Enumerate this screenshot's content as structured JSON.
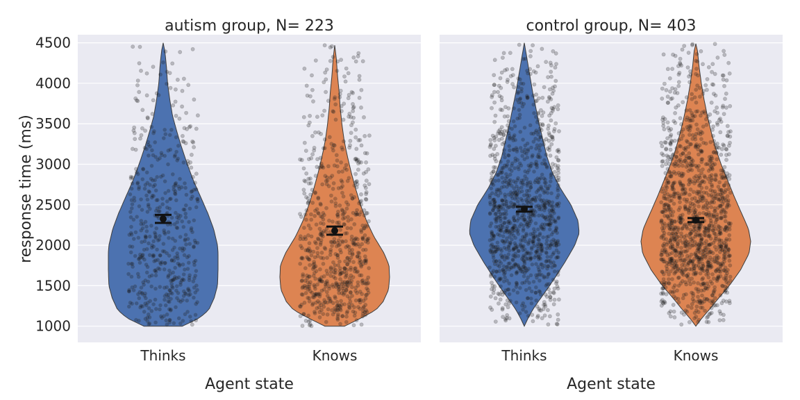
{
  "chart_data": [
    {
      "type": "violin",
      "title": "autism group, N= 223",
      "xlabel": "Agent state",
      "ylabel": "response time (ms)",
      "ylim": [
        800,
        4600
      ],
      "yticks": [
        1000,
        1500,
        2000,
        2500,
        3000,
        3500,
        4000,
        4500
      ],
      "categories": [
        "Thinks",
        "Knows"
      ],
      "series": [
        {
          "category": "Thinks",
          "color": "#4c72b0",
          "range": [
            1000,
            4500
          ],
          "mean": 2325,
          "ci": [
            2275,
            2375
          ],
          "n_points": 520,
          "density": [
            [
              1000,
              0.35
            ],
            [
              1100,
              0.66
            ],
            [
              1200,
              0.83
            ],
            [
              1350,
              0.93
            ],
            [
              1500,
              0.99
            ],
            [
              1700,
              1.0
            ],
            [
              1900,
              1.0
            ],
            [
              2000,
              0.99
            ],
            [
              2200,
              0.92
            ],
            [
              2400,
              0.81
            ],
            [
              2600,
              0.68
            ],
            [
              2800,
              0.55
            ],
            [
              3000,
              0.44
            ],
            [
              3200,
              0.34
            ],
            [
              3400,
              0.25
            ],
            [
              3600,
              0.17
            ],
            [
              3800,
              0.12
            ],
            [
              4000,
              0.08
            ],
            [
              4200,
              0.06
            ],
            [
              4400,
              0.03
            ],
            [
              4500,
              0.0
            ]
          ]
        },
        {
          "category": "Knows",
          "color": "#dd8452",
          "range": [
            1000,
            4470
          ],
          "mean": 2180,
          "ci": [
            2130,
            2230
          ],
          "n_points": 720,
          "density": [
            [
              1000,
              0.18
            ],
            [
              1100,
              0.48
            ],
            [
              1200,
              0.75
            ],
            [
              1300,
              0.88
            ],
            [
              1450,
              0.98
            ],
            [
              1600,
              1.0
            ],
            [
              1750,
              0.99
            ],
            [
              1900,
              0.9
            ],
            [
              2100,
              0.72
            ],
            [
              2300,
              0.58
            ],
            [
              2500,
              0.47
            ],
            [
              2700,
              0.38
            ],
            [
              2900,
              0.3
            ],
            [
              3100,
              0.23
            ],
            [
              3300,
              0.17
            ],
            [
              3500,
              0.13
            ],
            [
              3700,
              0.1
            ],
            [
              3900,
              0.08
            ],
            [
              4100,
              0.05
            ],
            [
              4300,
              0.03
            ],
            [
              4470,
              0.0
            ]
          ]
        }
      ]
    },
    {
      "type": "violin",
      "title": "control group, N= 403",
      "xlabel": "Agent state",
      "ylabel": "",
      "ylim": [
        800,
        4600
      ],
      "yticks": [
        1000,
        1500,
        2000,
        2500,
        3000,
        3500,
        4000,
        4500
      ],
      "categories": [
        "Thinks",
        "Knows"
      ],
      "series": [
        {
          "category": "Thinks",
          "color": "#4c72b0",
          "range": [
            1000,
            4500
          ],
          "mean": 2445,
          "ci": [
            2415,
            2475
          ],
          "n_points": 1100,
          "density": [
            [
              1000,
              0.0
            ],
            [
              1100,
              0.07
            ],
            [
              1200,
              0.15
            ],
            [
              1300,
              0.25
            ],
            [
              1450,
              0.41
            ],
            [
              1600,
              0.56
            ],
            [
              1800,
              0.75
            ],
            [
              2000,
              0.92
            ],
            [
              2150,
              1.0
            ],
            [
              2300,
              0.98
            ],
            [
              2500,
              0.85
            ],
            [
              2700,
              0.66
            ],
            [
              2900,
              0.51
            ],
            [
              3100,
              0.41
            ],
            [
              3300,
              0.34
            ],
            [
              3500,
              0.27
            ],
            [
              3700,
              0.21
            ],
            [
              3900,
              0.15
            ],
            [
              4100,
              0.1
            ],
            [
              4300,
              0.05
            ],
            [
              4500,
              0.0
            ]
          ]
        },
        {
          "category": "Knows",
          "color": "#dd8452",
          "range": [
            1000,
            4490
          ],
          "mean": 2310,
          "ci": [
            2285,
            2335
          ],
          "n_points": 1250,
          "density": [
            [
              1000,
              0.0
            ],
            [
              1100,
              0.11
            ],
            [
              1200,
              0.24
            ],
            [
              1350,
              0.42
            ],
            [
              1500,
              0.61
            ],
            [
              1700,
              0.82
            ],
            [
              1900,
              0.97
            ],
            [
              2050,
              1.0
            ],
            [
              2200,
              0.96
            ],
            [
              2400,
              0.83
            ],
            [
              2600,
              0.7
            ],
            [
              2800,
              0.58
            ],
            [
              3000,
              0.46
            ],
            [
              3200,
              0.36
            ],
            [
              3400,
              0.28
            ],
            [
              3600,
              0.21
            ],
            [
              3800,
              0.15
            ],
            [
              4000,
              0.1
            ],
            [
              4200,
              0.06
            ],
            [
              4400,
              0.03
            ],
            [
              4490,
              0.0
            ]
          ]
        }
      ]
    }
  ]
}
